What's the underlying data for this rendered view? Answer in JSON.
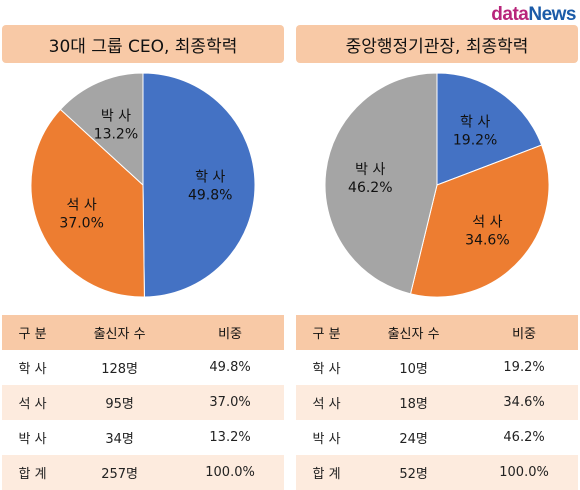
{
  "brand": {
    "part1": "data",
    "part2": "News"
  },
  "colors": {
    "blue": "#4472c4",
    "orange": "#ed7d31",
    "gray": "#a5a5a5",
    "header_bg": "#f8c9a6",
    "row_alt_bg": "#fdebde"
  },
  "left": {
    "title": "30대 그룹 CEO, 최종학력",
    "table": {
      "headers": [
        "구 분",
        "출신자 수",
        "비중"
      ],
      "rows": [
        [
          "학 사",
          "128명",
          "49.8%"
        ],
        [
          "석 사",
          "95명",
          "37.0%"
        ],
        [
          "박 사",
          "34명",
          "13.2%"
        ],
        [
          "합 계",
          "257명",
          "100.0%"
        ]
      ]
    }
  },
  "right": {
    "title": "중앙행정기관장, 최종학력",
    "table": {
      "headers": [
        "구 분",
        "출신자 수",
        "비중"
      ],
      "rows": [
        [
          "학 사",
          "10명",
          "19.2%"
        ],
        [
          "석 사",
          "18명",
          "34.6%"
        ],
        [
          "박 사",
          "24명",
          "46.2%"
        ],
        [
          "합 계",
          "52명",
          "100.0%"
        ]
      ]
    }
  },
  "chart_data": [
    {
      "type": "pie",
      "title": "30대 그룹 CEO, 최종학력",
      "categories": [
        "학사",
        "석사",
        "박사"
      ],
      "values": [
        49.8,
        37.0,
        13.2
      ],
      "value_labels": [
        "49.8%",
        "37.0%",
        "13.2%"
      ],
      "colors": [
        "#4472c4",
        "#ed7d31",
        "#a5a5a5"
      ]
    },
    {
      "type": "pie",
      "title": "중앙행정기관장, 최종학력",
      "categories": [
        "학사",
        "석사",
        "박사"
      ],
      "values": [
        19.2,
        34.6,
        46.2
      ],
      "value_labels": [
        "19.2%",
        "34.6%",
        "46.2%"
      ],
      "colors": [
        "#4472c4",
        "#ed7d31",
        "#a5a5a5"
      ]
    }
  ]
}
